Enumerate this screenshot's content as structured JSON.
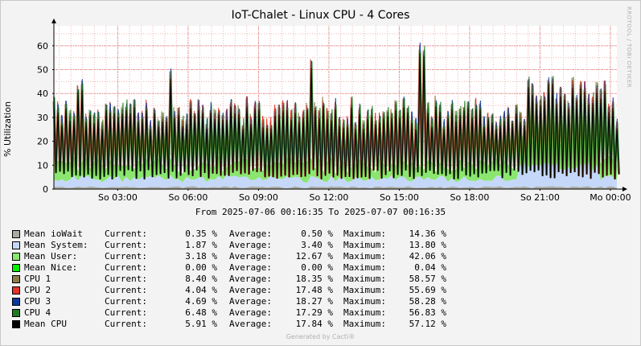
{
  "title": "IoT-Chalet - Linux CPU - 4 Cores",
  "vendor_text": "RRDTOOL / TOBI OETIKER",
  "ylabel": "% Utilization",
  "from_to": "From 2025-07-06 00:16:35 To 2025-07-07 00:16:35",
  "footer": "Generated by Cacti®",
  "chart_data": {
    "type": "area",
    "ylim": [
      0,
      65
    ],
    "yticks": [
      0,
      10,
      20,
      30,
      40,
      50,
      60
    ],
    "ytick_labels": [
      "0",
      "10",
      "20",
      "30",
      "40",
      "50",
      "60"
    ],
    "xrange_hours": [
      0.2764,
      24.2764
    ],
    "xticks_hours": [
      3,
      6,
      9,
      12,
      15,
      18,
      21,
      24
    ],
    "xtick_labels": [
      "So 03:00",
      "So 06:00",
      "So 09:00",
      "So 12:00",
      "So 15:00",
      "So 18:00",
      "So 21:00",
      "Mo 00:00"
    ],
    "grid": true,
    "legend_position": "bottom",
    "series": [
      {
        "name": "Mean ioWait",
        "color": "#AAABA1",
        "current": "0.35 %",
        "average": "0.50 %",
        "maximum": "14.36 %"
      },
      {
        "name": "Mean System:",
        "color": "#C5D8F9",
        "current": "1.87 %",
        "average": "3.40 %",
        "maximum": "13.80 %"
      },
      {
        "name": "Mean User:",
        "color": "#8BE66F",
        "current": "3.18 %",
        "average": "12.67 %",
        "maximum": "42.06 %"
      },
      {
        "name": "Mean Nice:",
        "color": "#00EE00",
        "current": "0.00 %",
        "average": "0.00 %",
        "maximum": "0.04 %"
      },
      {
        "name": "CPU 1",
        "color": "#8F7B4B",
        "current": "8.40 %",
        "average": "18.35 %",
        "maximum": "58.57 %"
      },
      {
        "name": "CPU 2",
        "color": "#E5332A",
        "current": "4.04 %",
        "average": "17.48 %",
        "maximum": "55.69 %"
      },
      {
        "name": "CPU 3",
        "color": "#0B3A9E",
        "current": "4.69 %",
        "average": "18.27 %",
        "maximum": "58.28 %"
      },
      {
        "name": "CPU 4",
        "color": "#1F7A1F",
        "current": "6.48 %",
        "average": "17.29 %",
        "maximum": "56.83 %"
      },
      {
        "name": "Mean CPU",
        "color": "#000000",
        "current": "5.91 %",
        "average": "17.84 %",
        "maximum": "57.12 %"
      }
    ],
    "legend_labels": {
      "current": "Current:",
      "average": "Average:",
      "maximum": "Maximum:"
    },
    "peaks_mean_cpu": [
      {
        "hour": 1.42,
        "value": 42
      },
      {
        "hour": 5.24,
        "value": 47
      },
      {
        "hour": 11.23,
        "value": 51
      },
      {
        "hour": 15.9,
        "value": 57
      },
      {
        "hour": 21.42,
        "value": 45
      }
    ]
  }
}
